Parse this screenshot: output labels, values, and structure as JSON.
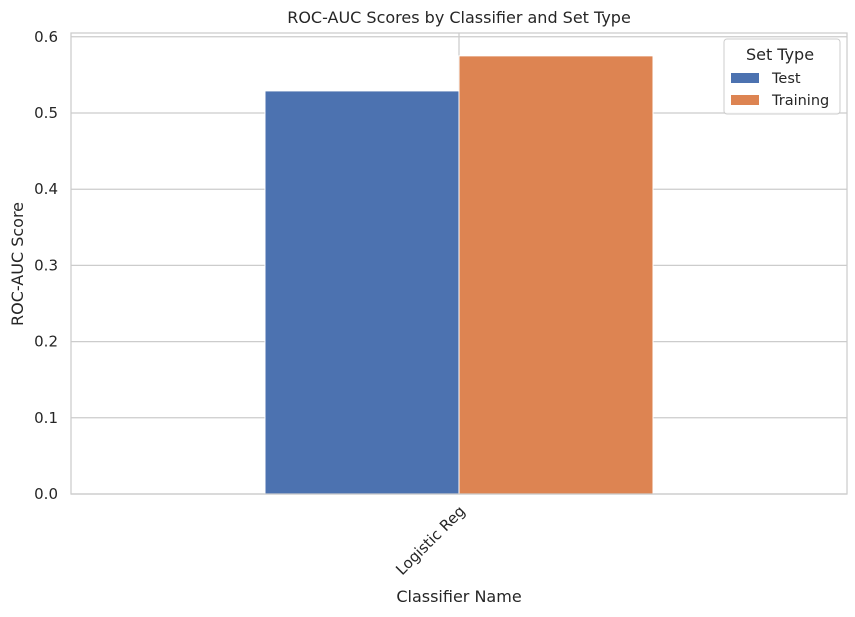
{
  "chart_data": {
    "type": "bar",
    "title": "ROC-AUC Scores by Classifier and Set Type",
    "xlabel": "Classifier Name",
    "ylabel": "ROC-AUC Score",
    "categories": [
      "Logistic Reg"
    ],
    "series": [
      {
        "name": "Test",
        "values": [
          0.529
        ],
        "color": "#4c72b0"
      },
      {
        "name": "Training",
        "values": [
          0.575
        ],
        "color": "#dd8452"
      }
    ],
    "ylim": [
      0,
      0.605
    ],
    "yticks": [
      "0.0",
      "0.1",
      "0.2",
      "0.3",
      "0.4",
      "0.5",
      "0.6"
    ],
    "ytick_values": [
      0,
      0.1,
      0.2,
      0.3,
      0.4,
      0.5,
      0.6
    ],
    "grid": true,
    "x_tick_rotation": "45 degrees",
    "legend": {
      "title": "Set Type",
      "placement": "top-right"
    }
  }
}
